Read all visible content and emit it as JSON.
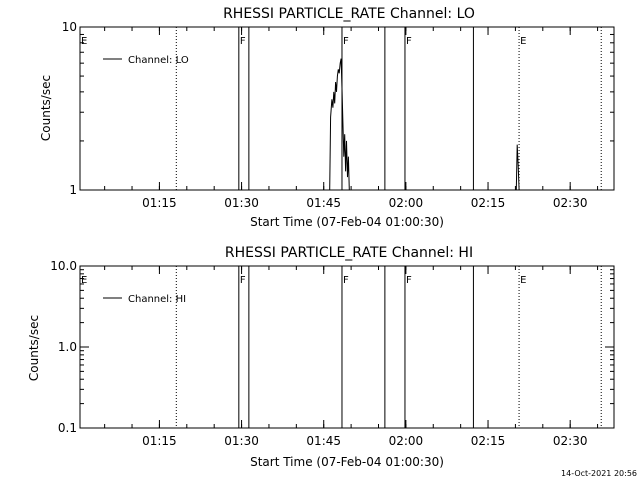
{
  "footer_timestamp": "14-Oct-2021 20:56",
  "chart_data": [
    {
      "type": "line",
      "title": "RHESSI PARTICLE_RATE Channel: LO",
      "xlabel": "Start Time (07-Feb-04 01:00:30)",
      "ylabel": "Counts/sec",
      "y_scale": "log",
      "xlim": [
        "01:00:30",
        "02:38"
      ],
      "ylim": [
        1,
        10
      ],
      "x_ticks": [
        "01:15",
        "01:30",
        "01:45",
        "02:00",
        "02:15",
        "02:30"
      ],
      "y_ticks": [
        "1",
        "10"
      ],
      "legend": {
        "position": "top-left",
        "entries": [
          "Channel: LO"
        ]
      },
      "grid": false,
      "series": [
        {
          "name": "Channel: LO",
          "points": [
            [
              "01:46:05",
              1
            ],
            [
              "01:46:15",
              2.8
            ],
            [
              "01:46:30",
              3.6
            ],
            [
              "01:46:40",
              3.2
            ],
            [
              "01:46:50",
              4.0
            ],
            [
              "01:47:00",
              3.4
            ],
            [
              "01:47:10",
              4.6
            ],
            [
              "01:47:20",
              4.0
            ],
            [
              "01:47:30",
              5.0
            ],
            [
              "01:47:40",
              5.5
            ],
            [
              "01:47:50",
              5.2
            ],
            [
              "01:48:00",
              6.0
            ],
            [
              "01:48:10",
              6.4
            ],
            [
              "01:48:20",
              4.2
            ],
            [
              "01:48:30",
              2.6
            ],
            [
              "01:48:40",
              1.6
            ],
            [
              "01:48:50",
              2.2
            ],
            [
              "01:49:00",
              1.3
            ],
            [
              "01:49:10",
              2.0
            ],
            [
              "01:49:20",
              1.2
            ],
            [
              "01:49:30",
              1.6
            ],
            [
              "01:49:40",
              1
            ],
            [
              null,
              null
            ],
            [
              "02:20:10",
              1
            ],
            [
              "02:20:20",
              1.9
            ],
            [
              "02:20:30",
              1.4
            ],
            [
              "02:20:40",
              1
            ]
          ]
        }
      ]
    },
    {
      "type": "line",
      "title": "RHESSI PARTICLE_RATE Channel: HI",
      "xlabel": "Start Time (07-Feb-04 01:00:30)",
      "ylabel": "Counts/sec",
      "y_scale": "log",
      "xlim": [
        "01:00:30",
        "02:38"
      ],
      "ylim": [
        0.1,
        10
      ],
      "x_ticks": [
        "01:15",
        "01:30",
        "01:45",
        "02:00",
        "02:15",
        "02:30"
      ],
      "y_ticks": [
        "0.1",
        "1.0",
        "10.0"
      ],
      "legend": {
        "position": "top-left",
        "entries": [
          "Channel: HI"
        ]
      },
      "grid": false,
      "series": [
        {
          "name": "Channel: HI",
          "points": []
        }
      ]
    }
  ],
  "event_markers": {
    "solid": [
      "01:29:30",
      "01:31:20",
      "01:48:20",
      "01:56:10",
      "01:59:50",
      "02:12:20"
    ],
    "dotted": [
      "01:00:30",
      "01:18:05",
      "02:20:40",
      "02:35:40"
    ],
    "flags": [
      {
        "label": "E",
        "time": "01:00:30"
      },
      {
        "label": "F",
        "time": "01:29:30"
      },
      {
        "label": "F",
        "time": "01:48:20"
      },
      {
        "label": "F",
        "time": "01:59:50"
      },
      {
        "label": "E",
        "time": "02:20:40"
      }
    ]
  }
}
